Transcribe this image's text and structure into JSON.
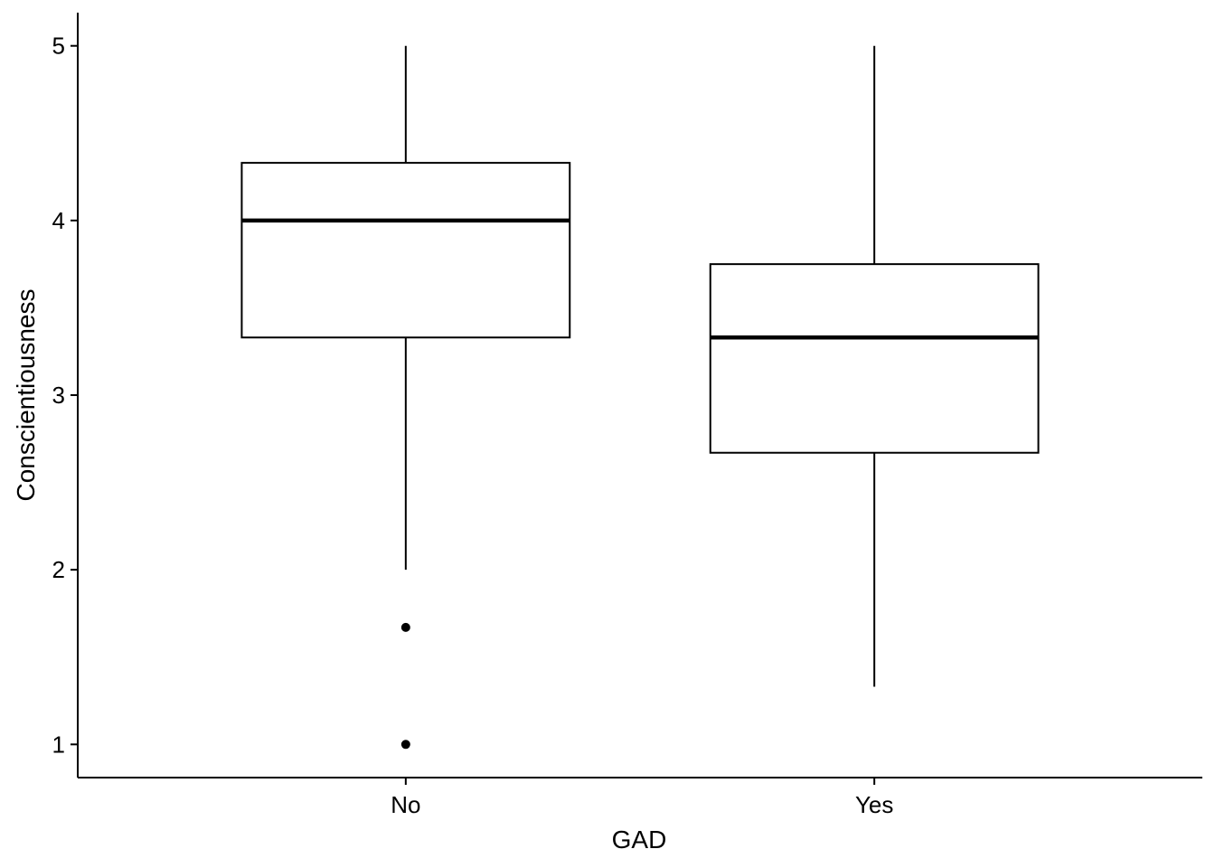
{
  "chart_data": {
    "type": "box",
    "xlabel": "GAD",
    "ylabel": "Conscientiousness",
    "ylim": [
      0.81,
      5.19
    ],
    "yticks": [
      1,
      2,
      3,
      4,
      5
    ],
    "categories": [
      "No",
      "Yes"
    ],
    "boxes": [
      {
        "category": "No",
        "whisker_low": 2.0,
        "q1": 3.33,
        "median": 4.0,
        "q3": 4.33,
        "whisker_high": 5.0,
        "outliers": [
          1.67,
          1.0
        ]
      },
      {
        "category": "Yes",
        "whisker_low": 1.33,
        "q1": 2.67,
        "median": 3.33,
        "q3": 3.75,
        "whisker_high": 5.0,
        "outliers": []
      }
    ],
    "grid": false,
    "legend": "none",
    "colors": {
      "box_line": "#000000",
      "box_fill": "#ffffff",
      "background": "#ffffff"
    }
  }
}
